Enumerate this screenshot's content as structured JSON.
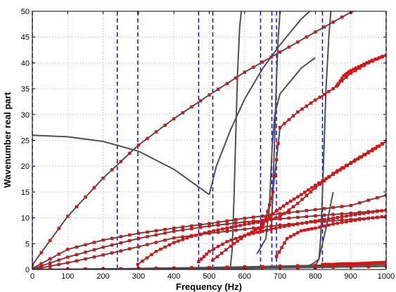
{
  "chart_data": {
    "type": "line",
    "xlabel": "Frequency (Hz)",
    "ylabel": "Wavenumber real part",
    "xlim": [
      0,
      1000
    ],
    "ylim": [
      0,
      50
    ],
    "xticks": [
      0,
      100,
      200,
      300,
      400,
      500,
      600,
      700,
      800,
      900,
      1000
    ],
    "yticks": [
      0,
      5,
      10,
      15,
      20,
      25,
      30,
      35,
      40,
      45,
      50
    ],
    "grid": true,
    "grid_style": "dotted",
    "colors": {
      "curve": "#505050",
      "marker": "#e01010",
      "cutoff": "#0000ee",
      "frame": "#000000"
    },
    "cutoff_frequencies": [
      0,
      240,
      298,
      470,
      510,
      645,
      677,
      690,
      820,
      1000
    ],
    "curves": [
      {
        "x": [
          0,
          100,
          200,
          300,
          400,
          500
        ],
        "y": [
          26,
          25.7,
          24.8,
          22.9,
          19.4,
          14.5
        ]
      },
      {
        "x": [
          500,
          520,
          560,
          600,
          650,
          700,
          760,
          800
        ],
        "y": [
          14.5,
          20,
          27,
          33,
          38.8,
          43.5,
          48.5,
          51
        ]
      },
      {
        "x": [
          559,
          565,
          570,
          575,
          580,
          586,
          592
        ],
        "y": [
          0,
          4,
          14,
          26,
          38,
          47,
          51
        ]
      },
      {
        "x": [
          635,
          660,
          670,
          678,
          685,
          700,
          760,
          800
        ],
        "y": [
          3,
          6,
          12,
          24,
          30,
          34,
          39,
          41
        ]
      },
      {
        "x": [
          675,
          680,
          685,
          690,
          695,
          700,
          705
        ],
        "y": [
          7,
          15,
          26,
          37,
          45,
          50,
          51
        ]
      },
      {
        "x": [
          795,
          810,
          815,
          820,
          825,
          830,
          838,
          845
        ],
        "y": [
          0,
          2,
          6,
          15,
          25,
          35,
          45,
          51
        ]
      },
      {
        "x": [
          770,
          790,
          810,
          830,
          850
        ],
        "y": [
          0.5,
          1,
          2,
          8,
          15
        ]
      }
    ],
    "marked_curves": [
      {
        "x": [
          0,
          100,
          200,
          300,
          400,
          500,
          600,
          700,
          800,
          900,
          1000
        ],
        "y": [
          0.9,
          10.3,
          17.7,
          24.1,
          29.2,
          33.8,
          38.2,
          42.1,
          46.0,
          49.8,
          52.5
        ]
      },
      {
        "x": [
          0,
          100,
          200,
          300,
          400,
          500,
          600,
          700,
          800,
          900,
          1000
        ],
        "y": [
          0.2,
          3.9,
          5.7,
          7.0,
          8.0,
          8.9,
          9.9,
          10.8,
          11.6,
          12.4,
          14.4
        ]
      },
      {
        "x": [
          0,
          100,
          200,
          300,
          400,
          500,
          600,
          700,
          800,
          900,
          1000
        ],
        "y": [
          0.1,
          2.4,
          4.3,
          6.0,
          7.4,
          8.4,
          9.2,
          9.8,
          10.4,
          10.9,
          11.5
        ]
      },
      {
        "x": [
          0,
          100,
          200,
          300,
          400,
          500,
          600,
          700,
          800,
          900,
          1000
        ],
        "y": [
          0.0,
          1.3,
          2.8,
          4.4,
          6.1,
          7.0,
          7.8,
          8.6,
          9.2,
          9.7,
          10.2
        ]
      },
      {
        "x": [
          0,
          200,
          400,
          600,
          800,
          1000
        ],
        "y": [
          0.0,
          0.1,
          0.3,
          0.5,
          0.8,
          1.2
        ]
      },
      {
        "x": [
          0,
          200,
          400,
          600,
          800,
          1000
        ],
        "y": [
          0.0,
          0.1,
          0.2,
          0.4,
          0.6,
          0.9
        ]
      },
      {
        "x": [
          0,
          200,
          400,
          600,
          800,
          1000
        ],
        "y": [
          0.0,
          0.1,
          0.1,
          0.2,
          0.4,
          0.6
        ]
      },
      {
        "x": [
          298,
          350,
          400,
          450,
          500,
          550,
          600,
          650,
          700,
          750,
          800,
          850,
          900,
          950,
          1000
        ],
        "y": [
          1.0,
          3.5,
          5.2,
          6.4,
          7.3,
          8.0,
          8.7,
          9.3,
          10.2,
          12.8,
          15.8,
          18.6,
          20.7,
          22.8,
          24.8
        ]
      },
      {
        "x": [
          470,
          500,
          550,
          600,
          650,
          700,
          750,
          800,
          850,
          900,
          950,
          1000
        ],
        "y": [
          1.5,
          3.5,
          5.4,
          6.6,
          7.4,
          8.2,
          8.8,
          9.4,
          9.9,
          10.5,
          11.0,
          11.5
        ]
      },
      {
        "x": [
          510,
          560,
          600,
          640,
          680,
          720,
          760,
          800,
          840,
          880,
          920,
          960,
          1000
        ],
        "y": [
          1.8,
          4.5,
          6.5,
          8.0,
          10.8,
          12.8,
          14.5,
          16.3,
          18.0,
          19.7,
          21.4,
          23.0,
          24.8
        ]
      },
      {
        "x": [
          645,
          660,
          680,
          700,
          750,
          800,
          850,
          900,
          950,
          1000
        ],
        "y": [
          7.5,
          10,
          15,
          27.5,
          30.5,
          32.8,
          35.0,
          38.0,
          40.0,
          41.5
        ]
      },
      {
        "x": [
          690,
          720,
          760,
          800,
          850,
          900,
          950,
          1000
        ],
        "y": [
          2.5,
          6.0,
          7.5,
          8.0,
          8.8,
          9.4,
          9.9,
          10.3
        ]
      },
      {
        "x": [
          860,
          880,
          900,
          930,
          960,
          1000
        ],
        "y": [
          35.5,
          37.5,
          38.5,
          39.5,
          40.5,
          41.5
        ]
      },
      {
        "x": [
          820,
          850,
          880,
          910,
          940,
          970,
          1000
        ],
        "y": [
          1.0,
          1.0,
          1.1,
          1.1,
          1.2,
          1.3,
          1.4
        ]
      }
    ]
  }
}
